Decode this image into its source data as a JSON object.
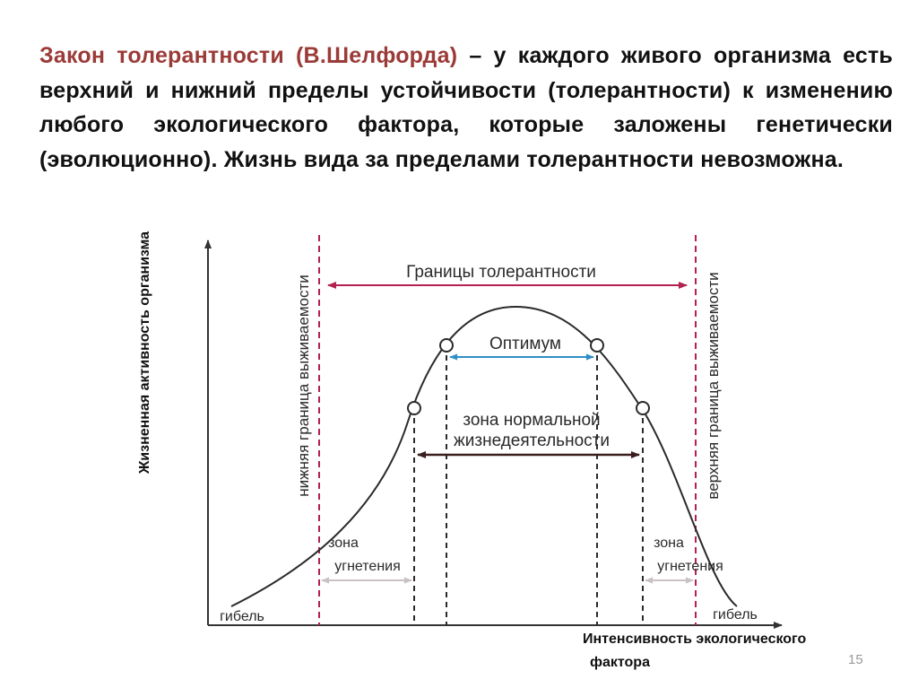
{
  "slide": {
    "text_highlight": "Закон толерантности (В.Шелфорда)",
    "text_rest": " – у каждого живого организма есть верхний и нижний пределы устойчивости (толерантности) к изменению любого экологического фактора, которые заложены генетически (эволюционно). Жизнь вида за пределами толерантности невозможна.",
    "page_number": "15"
  },
  "diagram": {
    "y_axis_label": "Жизненная активность организма",
    "x_axis_label_line1": "Интенсивность экологического",
    "x_axis_label_line2": "фактора",
    "tolerance_limits": "Границы толерантности",
    "optimum": "Оптимум",
    "normal_zone_line1": "зона нормальной",
    "normal_zone_line2": "жизнедеятельности",
    "oppression_zone_line1": "зона",
    "oppression_zone_line2": "угнетения",
    "death": "гибель",
    "lower_survival_limit": "нижняя граница выживаемости",
    "upper_survival_limit": "верхняя граница выживаемости",
    "colors": {
      "tolerance_arrow": "#b3214f",
      "optimum_arrow": "#2f8fc5",
      "normal_arrow": "#3a1d1d",
      "oppression_arrow": "#c9c2c2",
      "curve": "#2a2a2a",
      "limit_lines": "#b3214f",
      "highlight_text": "#9b3b38"
    }
  }
}
